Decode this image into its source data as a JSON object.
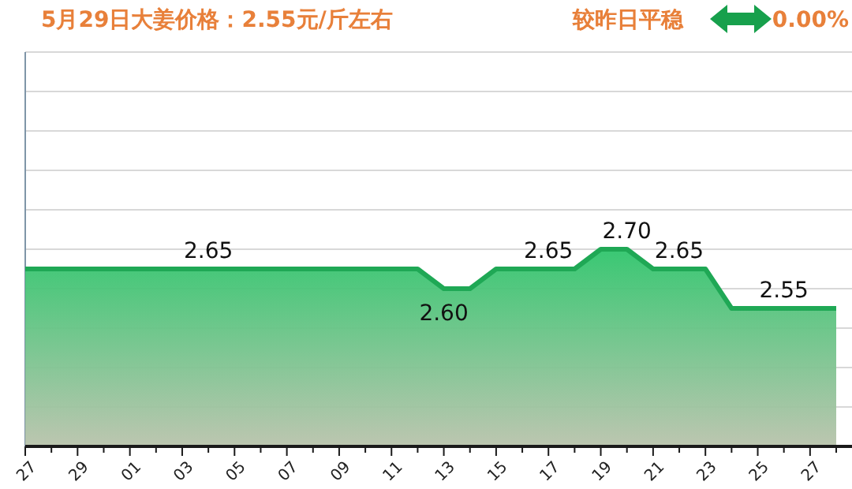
{
  "chart_data": {
    "type": "area",
    "title": "5月29日大姜价格：2.55元/斤左右",
    "subtitle": "较昨日平稳",
    "annotations": [
      "0.00%"
    ],
    "categories": [
      "27",
      null,
      "29",
      null,
      "01",
      null,
      "03",
      null,
      "05",
      null,
      "07",
      null,
      "09",
      null,
      "11",
      null,
      "13",
      null,
      "15",
      null,
      "17",
      null,
      "19",
      null,
      "21",
      null,
      "23",
      null,
      "25",
      null,
      "27",
      null
    ],
    "series": [
      {
        "color": "#1fa855",
        "values": [
          2.65,
          2.65,
          2.65,
          2.65,
          2.65,
          2.65,
          2.65,
          2.65,
          2.65,
          2.65,
          2.65,
          2.65,
          2.65,
          2.65,
          2.65,
          2.65,
          2.6,
          2.6,
          2.65,
          2.65,
          2.65,
          2.65,
          2.7,
          2.7,
          2.65,
          2.65,
          2.65,
          2.55,
          2.55,
          2.55,
          2.55,
          2.55
        ],
        "value_labels": [
          null,
          null,
          null,
          null,
          null,
          null,
          null,
          "2.65",
          null,
          null,
          null,
          null,
          null,
          null,
          null,
          null,
          "2.60",
          null,
          null,
          null,
          "2.65",
          null,
          null,
          "2.70",
          null,
          "2.65",
          null,
          null,
          null,
          "2.55",
          null,
          null
        ]
      }
    ],
    "ylim": [
      2.2,
      3.2
    ],
    "yticks": [
      {
        "value": 2.2,
        "label": null
      },
      {
        "value": 2.3,
        "label": null
      },
      {
        "value": 2.4,
        "label": null
      },
      {
        "value": 2.5,
        "label": null
      },
      {
        "value": 2.6,
        "label": null
      },
      {
        "value": 2.7,
        "label": null
      },
      {
        "value": 2.8,
        "label": null
      },
      {
        "value": 2.9,
        "label": null
      },
      {
        "value": 3.0,
        "label": null
      },
      {
        "value": 3.1,
        "label": null
      },
      {
        "value": 3.2,
        "label": null
      }
    ],
    "grid": "y",
    "marker": "none",
    "line_style": "solid"
  }
}
